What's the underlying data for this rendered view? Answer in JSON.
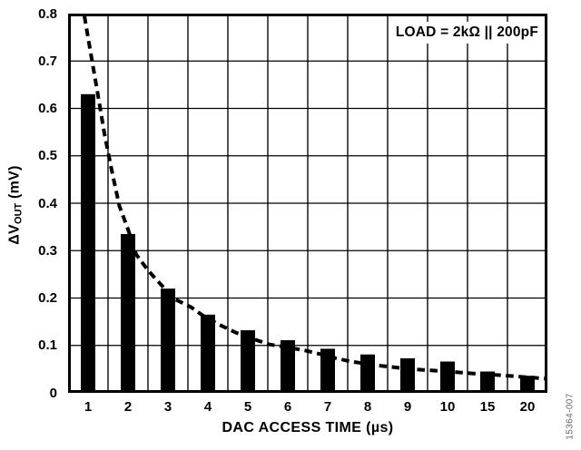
{
  "figure_code": "15364-007",
  "axes": {
    "y_title": {
      "prefix": "ΔV",
      "sub": "OUT",
      "suffix": " (mV)"
    }
  },
  "chart_data": {
    "type": "bar",
    "title": "",
    "xlabel": "DAC ACCESS TIME (µs)",
    "ylabel": "ΔVOUT (mV)",
    "annotation": "LOAD = 2kΩ || 200pF",
    "categories": [
      "1",
      "2",
      "3",
      "4",
      "5",
      "6",
      "7",
      "8",
      "9",
      "10",
      "15",
      "20"
    ],
    "values": [
      0.63,
      0.335,
      0.22,
      0.165,
      0.132,
      0.111,
      0.093,
      0.081,
      0.073,
      0.066,
      0.045,
      0.036
    ],
    "y_ticks": [
      "0.8",
      "0.7",
      "0.6",
      "0.5",
      "0.4",
      "0.3",
      "0.2",
      "0.1",
      "0"
    ],
    "ylim": [
      0,
      0.8
    ],
    "grid": true,
    "legend": "none",
    "bar_color": "#000000",
    "grid_color": "#000000",
    "curve_color": "#000000",
    "trend_curve": {
      "style": "dashed",
      "points": [
        [
          0.034,
          0.795
        ],
        [
          0.047,
          0.718
        ],
        [
          0.06,
          0.642
        ],
        [
          0.076,
          0.546
        ],
        [
          0.091,
          0.47
        ],
        [
          0.107,
          0.394
        ],
        [
          0.125,
          0.345
        ],
        [
          0.142,
          0.292
        ],
        [
          0.167,
          0.258
        ],
        [
          0.193,
          0.229
        ],
        [
          0.224,
          0.197
        ],
        [
          0.256,
          0.181
        ],
        [
          0.287,
          0.159
        ],
        [
          0.319,
          0.142
        ],
        [
          0.35,
          0.127
        ],
        [
          0.382,
          0.115
        ],
        [
          0.42,
          0.102
        ],
        [
          0.458,
          0.096
        ],
        [
          0.496,
          0.089
        ],
        [
          0.533,
          0.08
        ],
        [
          0.559,
          0.073
        ],
        [
          0.59,
          0.066
        ],
        [
          0.653,
          0.057
        ],
        [
          0.716,
          0.05
        ],
        [
          0.78,
          0.046
        ],
        [
          0.843,
          0.041
        ],
        [
          0.906,
          0.037
        ],
        [
          0.969,
          0.032
        ],
        [
          1.0,
          0.03
        ]
      ]
    }
  }
}
